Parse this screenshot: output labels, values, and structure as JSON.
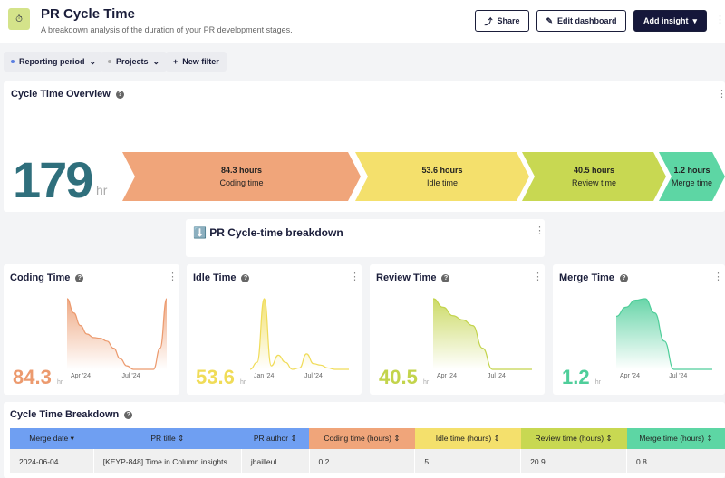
{
  "header": {
    "title": "PR Cycle Time",
    "subtitle": "A breakdown analysis of the duration of your PR development stages.",
    "logo_icon": "stopwatch-icon",
    "share": "Share",
    "edit": "Edit dashboard",
    "add": "Add insight"
  },
  "filters": [
    {
      "label": "Reporting period",
      "dot": "#5b7fe0"
    },
    {
      "label": "Projects",
      "dot": "#aaa"
    },
    {
      "label": "New filter"
    }
  ],
  "overview": {
    "title": "Cycle Time Overview",
    "total": "179",
    "unit": "hr",
    "segments": [
      {
        "value": "84.3 hours",
        "label": "Coding time",
        "color": "#f0a57a"
      },
      {
        "value": "53.6 hours",
        "label": "Idle time",
        "color": "#f4e06c"
      },
      {
        "value": "40.5 hours",
        "label": "Review time",
        "color": "#c8d852"
      },
      {
        "value": "1.2 hours",
        "label": "Merge time",
        "color": "#5dd6a4"
      }
    ]
  },
  "breakdown_heading": "⬇️ PR Cycle-time breakdown",
  "cards": [
    {
      "title": "Coding Time",
      "value": "84.3",
      "unit": "hr",
      "color": "#ec9a6e",
      "ticks": [
        "Apr '24",
        "Jul '24"
      ],
      "series": [
        1,
        0.8,
        0.62,
        0.5,
        0.45,
        0.44,
        0.4,
        0.3,
        0.15,
        0.05,
        0,
        0,
        0,
        0,
        0.3,
        1
      ]
    },
    {
      "title": "Idle Time",
      "value": "53.6",
      "unit": "hr",
      "color": "#f0dc58",
      "ticks": [
        "Jan '24",
        "Jul '24"
      ],
      "series": [
        0,
        0.1,
        1,
        0.05,
        0.2,
        0.1,
        0,
        0.02,
        0.22,
        0.08,
        0.06,
        0.02,
        0,
        0,
        0
      ]
    },
    {
      "title": "Review Time",
      "value": "40.5",
      "unit": "hr",
      "color": "#c3d44c",
      "ticks": [
        "Apr '24",
        "Jul '24"
      ],
      "series": [
        1,
        0.88,
        0.76,
        0.7,
        0.62,
        0.3,
        0,
        0,
        0,
        0,
        0
      ]
    },
    {
      "title": "Merge Time",
      "value": "1.2",
      "unit": "hr",
      "color": "#4fce9a",
      "ticks": [
        "Apr '24",
        "Jul '24"
      ],
      "series": [
        0.75,
        0.88,
        0.98,
        1,
        0.8,
        0.4,
        0,
        0,
        0,
        0,
        0
      ]
    }
  ],
  "table": {
    "title": "Cycle Time Breakdown",
    "columns": [
      {
        "label": "Merge date",
        "color": "#6f9ff2"
      },
      {
        "label": "PR title",
        "color": "#6f9ff2"
      },
      {
        "label": "PR author",
        "color": "#6f9ff2"
      },
      {
        "label": "Coding time (hours)",
        "color": "#f0a57a"
      },
      {
        "label": "Idle time (hours)",
        "color": "#f4e06c"
      },
      {
        "label": "Review time (hours)",
        "color": "#c8d852"
      },
      {
        "label": "Merge time (hours)",
        "color": "#5dd6a4"
      }
    ],
    "rows": [
      [
        "2024-06-04",
        "[KEYP-848] Time in Column insights",
        "jbailleul",
        "0.2",
        "5",
        "20.9",
        "0.8"
      ]
    ]
  }
}
